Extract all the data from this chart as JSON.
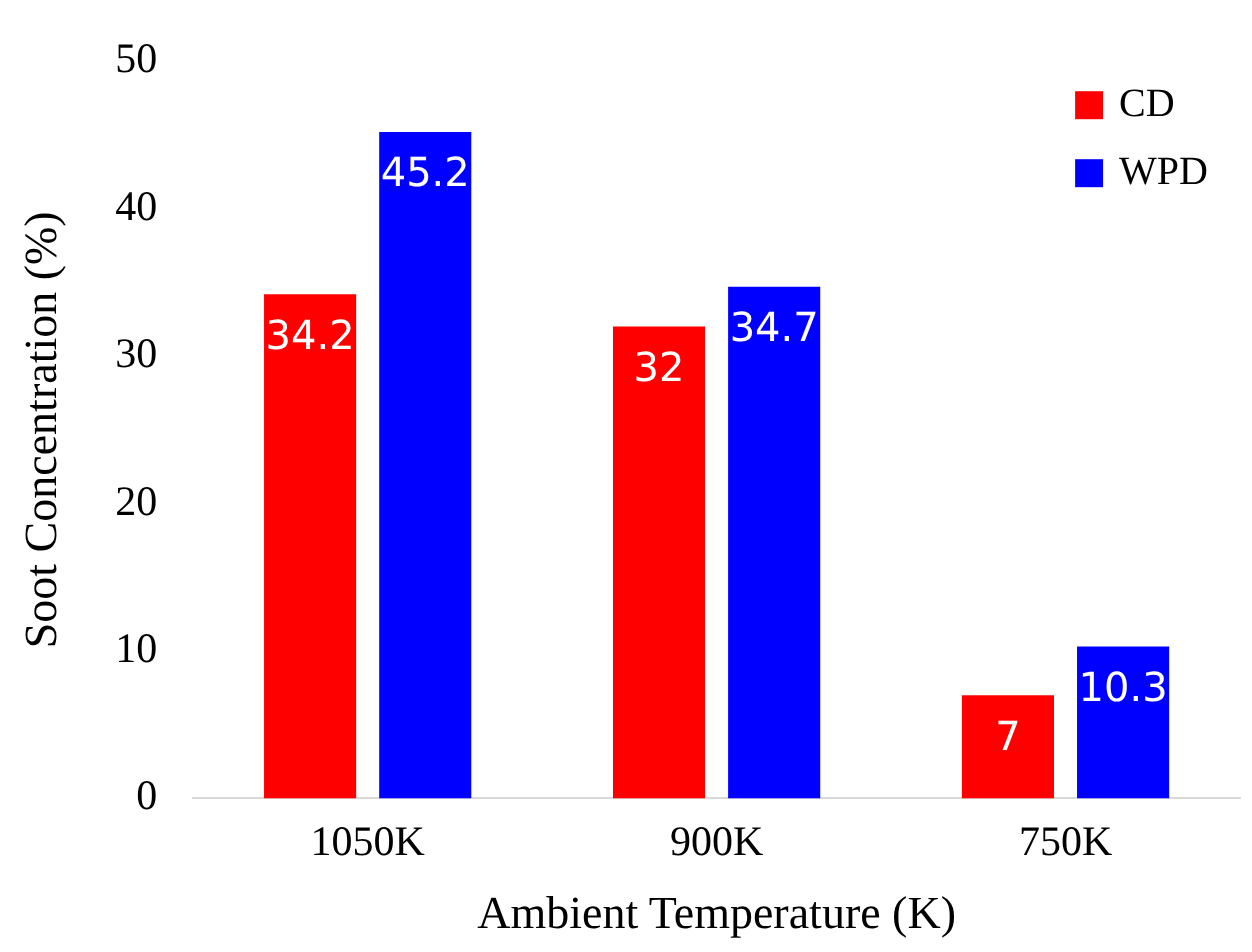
{
  "chart_data": {
    "type": "bar",
    "xlabel": "Ambient Temperature (K)",
    "ylabel": "Soot Concentration (%)",
    "categories": [
      "1050K",
      "900K",
      "750K"
    ],
    "series": [
      {
        "name": "CD",
        "color": "#ff0000",
        "values": [
          34.2,
          32,
          7
        ]
      },
      {
        "name": "WPD",
        "color": "#0000ff",
        "values": [
          45.2,
          34.7,
          10.3
        ]
      }
    ],
    "ylim": [
      0,
      50
    ],
    "yticks": [
      0,
      10,
      20,
      30,
      40,
      50
    ],
    "grid": false,
    "legend": "top right",
    "data_labels": true
  }
}
